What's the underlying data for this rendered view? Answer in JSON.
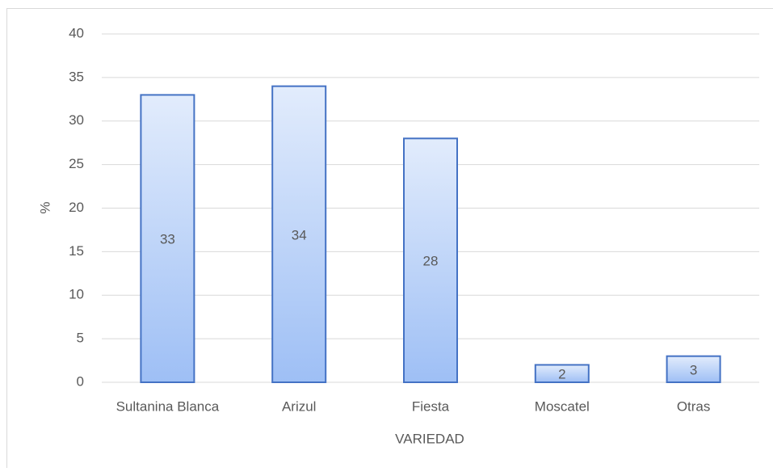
{
  "chart_data": {
    "type": "bar",
    "x_label": "VARIEDAD",
    "y_label": "%",
    "categories": [
      "Sultanina Blanca",
      "Arizul",
      "Fiesta",
      "Moscatel",
      "Otras"
    ],
    "values": [
      33,
      34,
      28,
      2,
      3
    ],
    "color": "#4472c4",
    "ylim": [
      0,
      40
    ],
    "yticks": [
      0,
      5,
      10,
      15,
      20,
      25,
      30,
      35,
      40
    ],
    "grid": true
  }
}
